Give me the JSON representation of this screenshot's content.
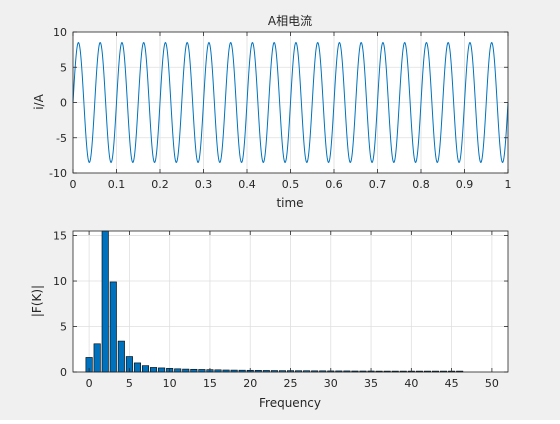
{
  "figure": {
    "background": "#f0f0f0"
  },
  "chart_data": [
    {
      "type": "line",
      "title": "A相电流",
      "xlabel": "time",
      "ylabel": "i/A",
      "xlim": [
        0,
        1
      ],
      "ylim": [
        -10,
        10
      ],
      "xticks": [
        "0",
        "0.1",
        "0.2",
        "0.3",
        "0.4",
        "0.5",
        "0.6",
        "0.7",
        "0.8",
        "0.9",
        "1"
      ],
      "yticks": [
        "-10",
        "-5",
        "0",
        "5",
        "10"
      ],
      "grid": true,
      "series": [
        {
          "color": "#0072bd",
          "signal": {
            "amplitude": 8.5,
            "frequency_hz": 20,
            "phase_deg": 0,
            "dc_offset": 0
          },
          "values": [
            0,
            5.0,
            8.1,
            8.1,
            5.0,
            0,
            -5.0,
            -8.1,
            -8.1,
            -5.0,
            0
          ]
        }
      ]
    },
    {
      "type": "bar",
      "title": "",
      "xlabel": "Frequency",
      "ylabel": "|F(K)|",
      "xlim": [
        -2,
        52
      ],
      "ylim": [
        0,
        15.5
      ],
      "xticks": [
        "0",
        "5",
        "10",
        "15",
        "20",
        "25",
        "30",
        "35",
        "40",
        "45",
        "50"
      ],
      "yticks": [
        "0",
        "5",
        "10",
        "15"
      ],
      "grid": true,
      "bar_color": "#0072bd",
      "categories": [
        0,
        1,
        2,
        3,
        4,
        5,
        6,
        7,
        8,
        9,
        10,
        11,
        12,
        13,
        14,
        15,
        16,
        17,
        18,
        19,
        20,
        21,
        22,
        23,
        24,
        25,
        26,
        27,
        28,
        29,
        30,
        31,
        32,
        33,
        34,
        35,
        36,
        37,
        38,
        39,
        40,
        41,
        42,
        43,
        44,
        45,
        46,
        47,
        48,
        49,
        50
      ],
      "values": [
        1.6,
        3.1,
        15.5,
        9.9,
        3.4,
        1.7,
        1.0,
        0.7,
        0.5,
        0.45,
        0.4,
        0.35,
        0.32,
        0.3,
        0.28,
        0.26,
        0.24,
        0.22,
        0.21,
        0.2,
        0.19,
        0.18,
        0.17,
        0.16,
        0.15,
        0.15,
        0.14,
        0.14,
        0.13,
        0.13,
        0.12,
        0.12,
        0.12,
        0.11,
        0.11,
        0.11,
        0.1,
        0.1,
        0.1,
        0.1,
        0.1,
        0.1,
        0.1,
        0.1,
        0.1,
        0.1,
        0.1,
        0,
        0,
        0,
        0
      ]
    }
  ]
}
